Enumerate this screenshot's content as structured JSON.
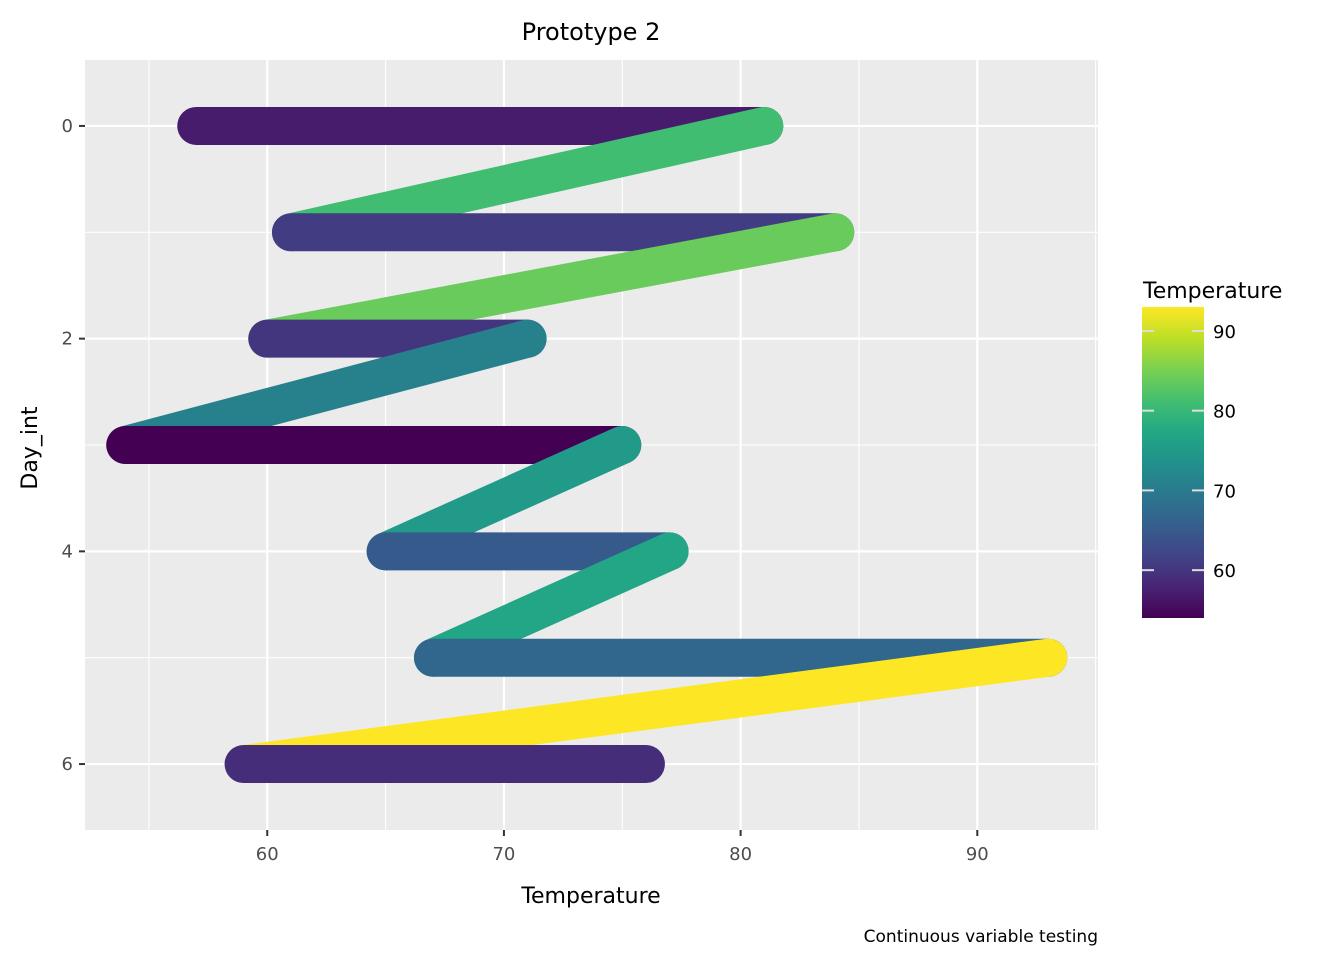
{
  "chart_data": {
    "type": "line",
    "geom": "path",
    "title": "Prototype 2",
    "xlabel": "Temperature",
    "ylabel": "Day_int",
    "caption": "Continuous variable testing",
    "xlim": [
      52.3,
      95.1
    ],
    "ylim": [
      6.62,
      -0.62
    ],
    "y_reversed": true,
    "x_ticks": [
      60,
      70,
      80,
      90
    ],
    "x_tick_labels": [
      "60",
      "70",
      "80",
      "90"
    ],
    "y_ticks": [
      0,
      2,
      4,
      6
    ],
    "y_tick_labels": [
      "0",
      "2",
      "4",
      "6"
    ],
    "grid": true,
    "points": [
      {
        "temperature": 57,
        "day": 0
      },
      {
        "temperature": 81,
        "day": 0
      },
      {
        "temperature": 61,
        "day": 1
      },
      {
        "temperature": 84,
        "day": 1
      },
      {
        "temperature": 60,
        "day": 2
      },
      {
        "temperature": 71,
        "day": 2
      },
      {
        "temperature": 54,
        "day": 3
      },
      {
        "temperature": 75,
        "day": 3
      },
      {
        "temperature": 65,
        "day": 4
      },
      {
        "temperature": 77,
        "day": 4
      },
      {
        "temperature": 67,
        "day": 5
      },
      {
        "temperature": 93,
        "day": 5
      },
      {
        "temperature": 59,
        "day": 6
      },
      {
        "temperature": 76,
        "day": 6
      }
    ],
    "legend": {
      "title": "Temperature",
      "placement": "right",
      "range": [
        54,
        93
      ],
      "ticks": [
        60,
        70,
        80,
        90
      ],
      "tick_labels": [
        "60",
        "70",
        "80",
        "90"
      ],
      "colormap": "viridis"
    },
    "colors": {
      "panel": "#ebebeb",
      "grid": "#ffffff",
      "viridis": [
        "#440154",
        "#482475",
        "#414487",
        "#355f8d",
        "#2a788e",
        "#21918c",
        "#22a884",
        "#44bf70",
        "#7ad151",
        "#bddf26",
        "#fde725"
      ]
    }
  }
}
